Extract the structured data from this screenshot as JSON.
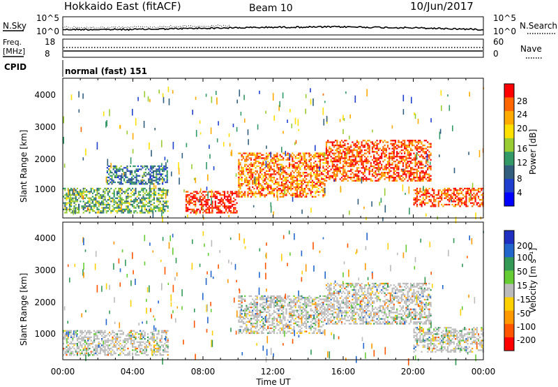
{
  "header": {
    "station": "Hokkaido East (fitACF)",
    "beam": "Beam 10",
    "date": "10/Jun/2017"
  },
  "noise_panel": {
    "label": "N.Sky",
    "right_label": "N.Search",
    "left_ticks": [
      "10^5",
      "10^0"
    ],
    "right_ticks": [
      "10^5",
      "10^0"
    ]
  },
  "freq_panel": {
    "label_line1": "Freq.",
    "label_line2": "[MHz]",
    "left_ticks": [
      "18",
      "8"
    ],
    "right_label": "Nave",
    "right_ticks": [
      "60",
      "0"
    ]
  },
  "cpid_panel": {
    "label": "CPID",
    "mode_text": "normal (fast) 151"
  },
  "range_axis": {
    "label": "Slant Range [km]",
    "ticks": [
      "4000",
      "3000",
      "2000",
      "1000"
    ]
  },
  "time_axis": {
    "label": "Time UT",
    "ticks": [
      "00:00",
      "04:00",
      "08:00",
      "12:00",
      "16:00",
      "20:00",
      "00:00"
    ]
  },
  "power_scale": {
    "label": "Power [dB]",
    "ticks": [
      "28",
      "24",
      "20",
      "16",
      "12",
      "8",
      "4"
    ],
    "colors": [
      "#ff0000",
      "#ff6600",
      "#ffaa00",
      "#ffe000",
      "#99cc33",
      "#339966",
      "#335f7f",
      "#1f3fcf",
      "#0000ff"
    ]
  },
  "velocity_scale": {
    "label": "Velocity [m s⁻¹]",
    "ticks": [
      "200",
      "100",
      "50",
      "15",
      "-15",
      "-50",
      "-100",
      "-200"
    ],
    "colors": [
      "#1f2fbf",
      "#2266cc",
      "#339955",
      "#66cc33",
      "#bbbbbb",
      "#ffd000",
      "#ff9900",
      "#ff5500",
      "#ff0000"
    ]
  },
  "chart_data": [
    {
      "type": "line",
      "title": "N.Sky / N.Search noise",
      "x": [
        "00:00",
        "04:00",
        "08:00",
        "12:00",
        "16:00",
        "20:00",
        "00:00"
      ],
      "series": [
        {
          "name": "N.Sky",
          "values": [
            2,
            2,
            2.6,
            3.1,
            3.3,
            2.8,
            2
          ]
        }
      ]
    },
    {
      "type": "line",
      "title": "Freq. [MHz]",
      "series": [
        {
          "name": "Freq.",
          "values": [
            10.5,
            10.5
          ]
        },
        {
          "name": "Nave",
          "values": [
            20,
            20
          ]
        }
      ]
    },
    {
      "type": "heatmap",
      "title": "Power [dB]",
      "xlabel": "Time UT",
      "ylabel": "Slant Range [km]",
      "xlim": [
        0,
        24
      ],
      "ylim": [
        180,
        4500
      ],
      "colorbar": [
        4,
        28
      ],
      "echo_regions_hours_km": [
        {
          "t": [
            0,
            6
          ],
          "range": [
            300,
            1100
          ],
          "power": 14
        },
        {
          "t": [
            2.5,
            6
          ],
          "range": [
            1200,
            1800
          ],
          "power": 10
        },
        {
          "t": [
            7,
            10
          ],
          "range": [
            300,
            1000
          ],
          "power": 28
        },
        {
          "t": [
            10,
            15
          ],
          "range": [
            800,
            2200
          ],
          "power": 24
        },
        {
          "t": [
            15,
            21
          ],
          "range": [
            1300,
            2600
          ],
          "power": 26
        },
        {
          "t": [
            20,
            24
          ],
          "range": [
            500,
            1100
          ],
          "power": 26
        }
      ]
    },
    {
      "type": "heatmap",
      "title": "Velocity [m s⁻¹]",
      "xlabel": "Time UT",
      "ylabel": "Slant Range [km]",
      "xlim": [
        0,
        24
      ],
      "ylim": [
        180,
        4500
      ],
      "colorbar": [
        -200,
        200
      ],
      "echo_regions_hours_km": [
        {
          "t": [
            0,
            6
          ],
          "range": [
            300,
            1100
          ],
          "velocity": 0
        },
        {
          "t": [
            10,
            15
          ],
          "range": [
            1000,
            2200
          ],
          "velocity": 0
        },
        {
          "t": [
            15,
            21
          ],
          "range": [
            1300,
            2600
          ],
          "velocity": 0
        },
        {
          "t": [
            20,
            24
          ],
          "range": [
            400,
            1200
          ],
          "velocity": 0
        }
      ]
    }
  ]
}
